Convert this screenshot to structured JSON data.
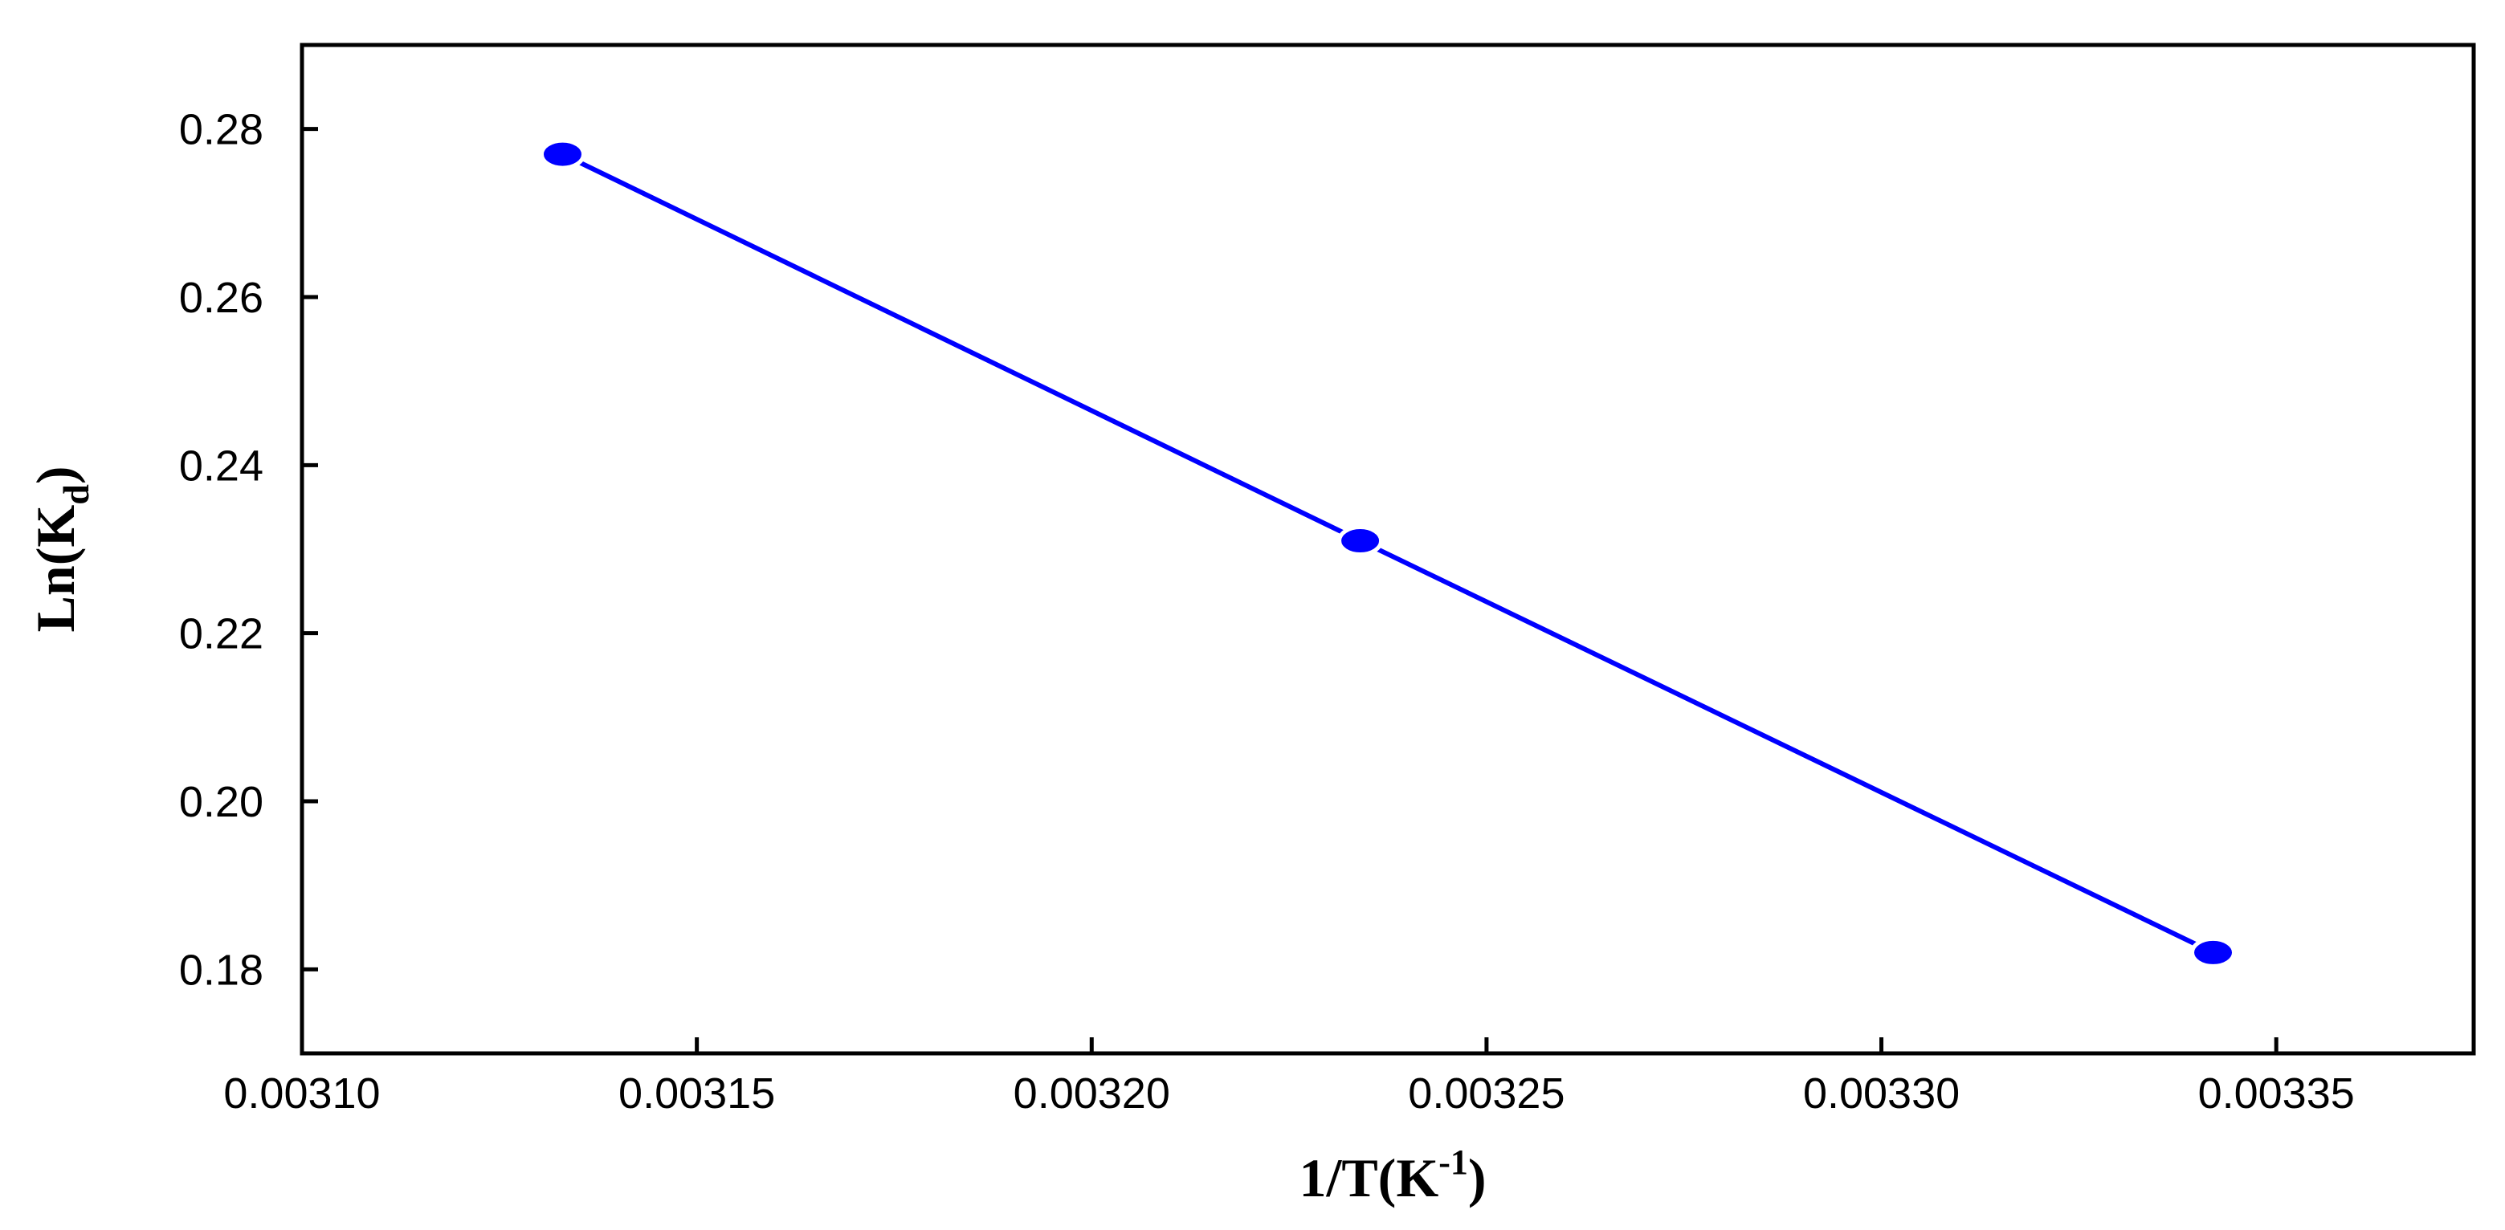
{
  "chart_data": {
    "type": "line",
    "title": "",
    "xlabel": {
      "base": "1/T(K",
      "superscript": "-1",
      "suffix": ")"
    },
    "ylabel": {
      "base": "Ln(K",
      "subscript": "d",
      "suffix": ")"
    },
    "xlim": [
      0.0031,
      0.003375
    ],
    "ylim": [
      0.17,
      0.29
    ],
    "xticks": [
      0.0031,
      0.00315,
      0.0032,
      0.00325,
      0.0033,
      0.00335
    ],
    "xtick_labels": [
      "0.00310",
      "0.00315",
      "0.00320",
      "0.00325",
      "0.00330",
      "0.00335"
    ],
    "yticks": [
      0.18,
      0.2,
      0.22,
      0.24,
      0.26,
      0.28
    ],
    "ytick_labels": [
      "0.18",
      "0.20",
      "0.22",
      "0.24",
      "0.26",
      "0.28"
    ],
    "grid": false,
    "series": [
      {
        "color": "#0000ff",
        "points": [
          {
            "x": 0.003133,
            "y": 0.277
          },
          {
            "x": 0.003234,
            "y": 0.231
          },
          {
            "x": 0.003342,
            "y": 0.182
          }
        ]
      }
    ]
  }
}
